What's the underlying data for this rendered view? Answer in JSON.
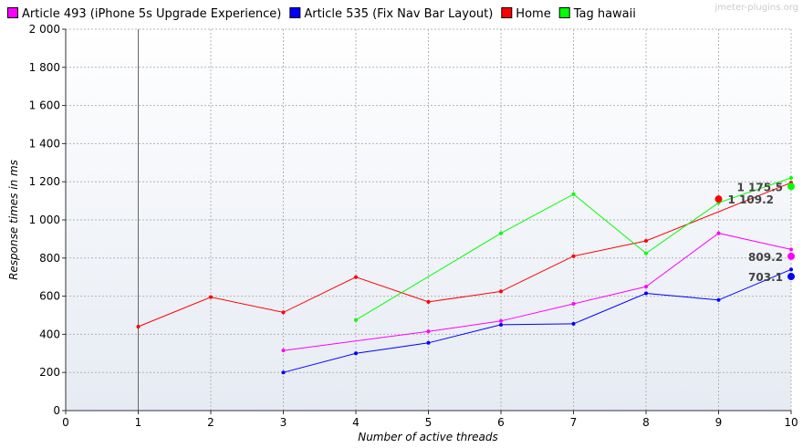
{
  "watermark": "jmeter-plugins.org",
  "chart_data": {
    "type": "line",
    "title": "",
    "xlabel": "Number of active threads",
    "ylabel": "Response times in ms",
    "xlim": [
      0,
      10
    ],
    "ylim": [
      0,
      2000
    ],
    "x_ticks": [
      "0",
      "1",
      "2",
      "3",
      "4",
      "5",
      "6",
      "7",
      "8",
      "9",
      "10"
    ],
    "y_ticks": [
      "0",
      "200",
      "400",
      "600",
      "800",
      "1 000",
      "1 200",
      "1 400",
      "1 600",
      "1 800",
      "2 000"
    ],
    "grid": true,
    "legend_position": "top",
    "marker_line_x": 1,
    "series": [
      {
        "name": "Article 493 (iPhone 5s Upgrade Experience)",
        "color": "#ff00ff",
        "points": [
          [
            3,
            315
          ],
          [
            5,
            415
          ],
          [
            6,
            470
          ],
          [
            7,
            560
          ],
          [
            8,
            650
          ],
          [
            9,
            930
          ],
          [
            10,
            845
          ]
        ],
        "average": 809.2,
        "average_label": "809.2"
      },
      {
        "name": "Article 535 (Fix Nav Bar Layout)",
        "color": "#0000ff",
        "points": [
          [
            3,
            200
          ],
          [
            4,
            300
          ],
          [
            5,
            355
          ],
          [
            6,
            450
          ],
          [
            7,
            455
          ],
          [
            8,
            615
          ],
          [
            9,
            580
          ],
          [
            10,
            740
          ]
        ],
        "average": 703.1,
        "average_label": "703.1"
      },
      {
        "name": "Home",
        "color": "#ff0000",
        "points": [
          [
            1,
            440
          ],
          [
            2,
            595
          ],
          [
            3,
            515
          ],
          [
            4,
            700
          ],
          [
            5,
            570
          ],
          [
            6,
            625
          ],
          [
            7,
            810
          ],
          [
            8,
            890
          ],
          [
            10,
            1195
          ]
        ],
        "average": 1109.2,
        "average_label": "1 109.2",
        "average_x": 9
      },
      {
        "name": "Tag hawaii",
        "color": "#00ff00",
        "points": [
          [
            4,
            475
          ],
          [
            6,
            930
          ],
          [
            7,
            1135
          ],
          [
            8,
            825
          ],
          [
            9,
            1090
          ],
          [
            10,
            1220
          ]
        ],
        "average": 1175.5,
        "average_label": "1 175.5"
      }
    ]
  }
}
